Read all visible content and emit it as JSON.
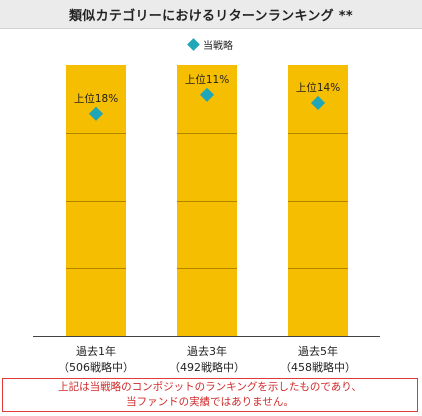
{
  "title": "類似カテゴリーにおけるリターンランキング **",
  "legend": {
    "label": "当戦略",
    "marker": "diamond-marker",
    "color": "#1fa6b8"
  },
  "chart_data": {
    "type": "scatter",
    "categories": [
      {
        "line1": "過去1年",
        "line2": "（506戦略中）"
      },
      {
        "line1": "過去3年",
        "line2": "（492戦略中）"
      },
      {
        "line1": "過去5年",
        "line2": "（458戦略中）"
      }
    ],
    "series": [
      {
        "name": "当戦略",
        "values": [
          18,
          11,
          14
        ],
        "labels": [
          "上位18%",
          "上位11%",
          "上位14%"
        ]
      }
    ],
    "ylim": [
      0,
      100
    ],
    "y_direction": "top-is-best",
    "quartile_lines": [
      25,
      50,
      75
    ],
    "bar_color": "#f5be00",
    "bar_divider_color": "#b08600",
    "marker_color": "#1fa6b8"
  },
  "footnote": {
    "line1": "上記は当戦略のコンポジットのランキングを示したものであり、",
    "line2": "当ファンドの実績ではありません。"
  }
}
